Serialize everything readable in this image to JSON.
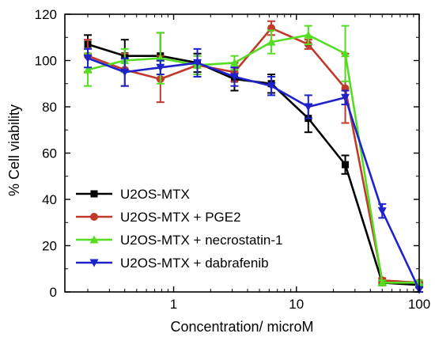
{
  "chart_data": {
    "type": "line",
    "xlabel": "Concentration/ microM",
    "ylabel": "% Cell viability",
    "xscale": "log",
    "xlim": [
      0.13,
      100
    ],
    "ylim": [
      0,
      120
    ],
    "x_ticks": [
      {
        "value": 1,
        "label": "1"
      },
      {
        "value": 10,
        "label": "10"
      },
      {
        "value": 100,
        "label": "100"
      }
    ],
    "y_ticks": [
      {
        "value": 0,
        "label": "0"
      },
      {
        "value": 20,
        "label": "20"
      },
      {
        "value": 40,
        "label": "40"
      },
      {
        "value": 60,
        "label": "60"
      },
      {
        "value": 80,
        "label": "80"
      },
      {
        "value": 100,
        "label": "100"
      },
      {
        "value": 120,
        "label": "120"
      }
    ],
    "grid": false,
    "legend_position": "bottom-left",
    "x": [
      0.2,
      0.4,
      0.78,
      1.56,
      3.13,
      6.25,
      12.5,
      25,
      50,
      100
    ],
    "series": [
      {
        "name": "U2OS-MTX",
        "color": "#000000",
        "marker": "square",
        "values": [
          107,
          102,
          102,
          99,
          92,
          90,
          75,
          55,
          4,
          3
        ],
        "errors": [
          4,
          7,
          10,
          4,
          5,
          4,
          6,
          4,
          1,
          1
        ]
      },
      {
        "name": "U2OS-MTX + PGE2",
        "color": "#c0392b",
        "marker": "circle",
        "values": [
          102,
          96,
          92,
          98,
          95,
          114,
          107,
          88,
          5,
          4
        ],
        "errors": [
          7,
          7,
          10,
          4,
          4,
          3,
          2,
          15,
          1,
          1
        ]
      },
      {
        "name": "U2OS-MTX + necrostatin-1",
        "color": "#55dd22",
        "marker": "triangle-up",
        "values": [
          96,
          100,
          101,
          98,
          99,
          108,
          111,
          103,
          4,
          4
        ],
        "errors": [
          7,
          5,
          11,
          4,
          3,
          5,
          4,
          12,
          1,
          1
        ]
      },
      {
        "name": "U2OS-MTX + dabrafenib",
        "color": "#1e22cc",
        "marker": "triangle-down",
        "values": [
          101,
          95,
          97,
          99,
          93,
          89,
          80,
          84,
          35,
          1
        ],
        "errors": [
          4,
          6,
          3,
          6,
          4,
          4,
          5,
          3,
          3,
          1
        ]
      }
    ]
  }
}
